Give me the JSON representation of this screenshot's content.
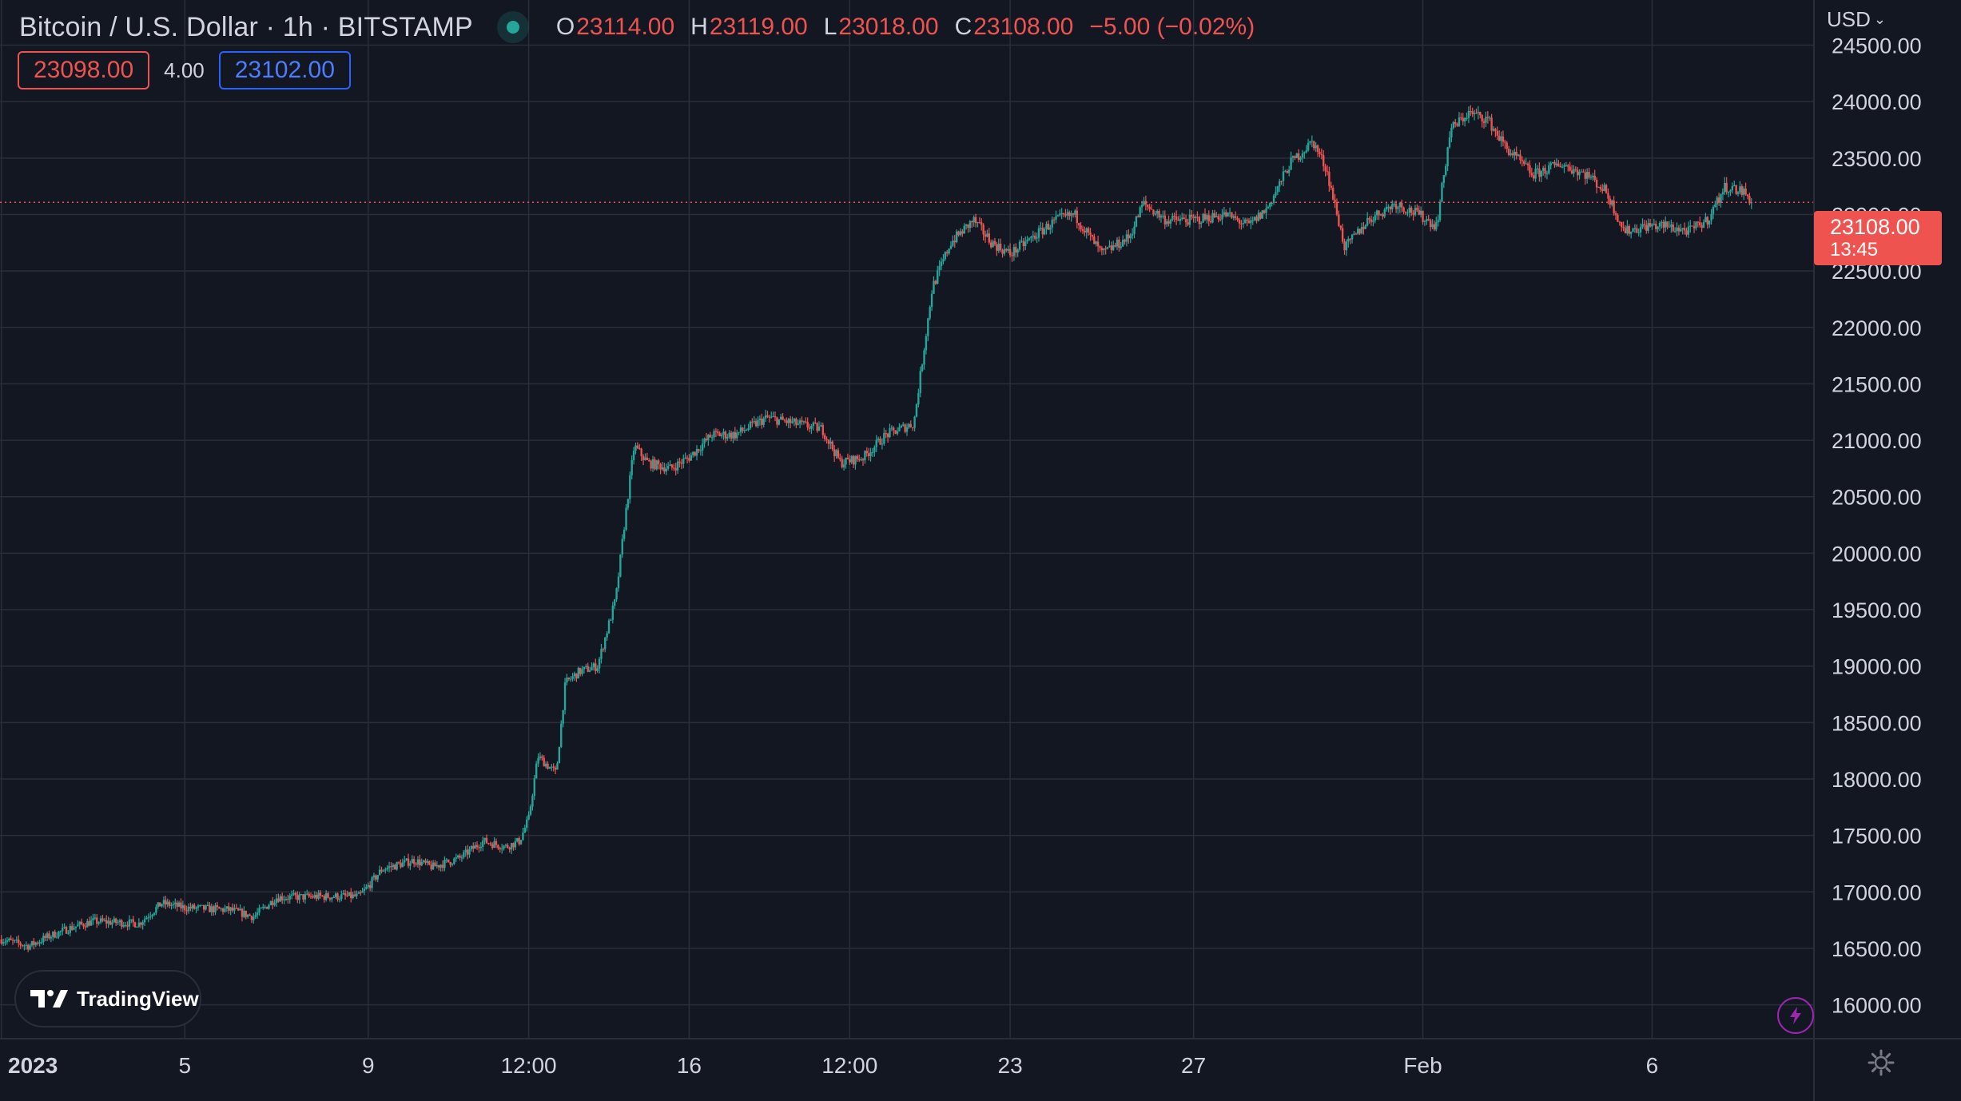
{
  "header": {
    "symbol_title": "Bitcoin / U.S. Dollar · 1h · BITSTAMP",
    "ohlc": {
      "o_label": "O",
      "o_value": "23114.00",
      "h_label": "H",
      "h_value": "23119.00",
      "l_label": "L",
      "l_value": "23018.00",
      "c_label": "C",
      "c_value": "23108.00",
      "change": "−5.00 (−0.02%)"
    },
    "bid": "23098.00",
    "spread": "4.00",
    "ask": "23102.00"
  },
  "price_scale": {
    "currency": "USD",
    "last_price": "23108.00",
    "countdown": "13:45"
  },
  "branding": {
    "logo_text": "TradingView"
  },
  "icons": {
    "live": "live-dot-icon",
    "bolt": "lightning-icon",
    "gear": "gear-icon",
    "chevron": "chevron-down-icon"
  },
  "colors": {
    "background": "#131722",
    "grid": "#2a2e39",
    "up": "#26a69a",
    "down": "#ef5350",
    "text": "#d1d4dc"
  },
  "chart_data": {
    "type": "candlestick",
    "title": "",
    "xlabel": "",
    "ylabel": "",
    "ylim": [
      15700,
      24900
    ],
    "y_ticks": [
      24500,
      24000,
      23500,
      23000,
      22500,
      22000,
      21500,
      21000,
      20500,
      20000,
      19500,
      19000,
      18500,
      18000,
      17500,
      17000,
      16500,
      16000
    ],
    "y_tick_labels": [
      "24500.00",
      "24000.00",
      "23500.00",
      "23000.00",
      "22500.00",
      "22000.00",
      "21500.00",
      "21000.00",
      "20500.00",
      "20000.00",
      "19500.00",
      "19000.00",
      "18500.00",
      "18000.00",
      "17500.00",
      "17000.00",
      "16500.00",
      "16000.00"
    ],
    "x_range": [
      -0.03,
      39.53
    ],
    "x_ticks": [
      {
        "t": 0,
        "label": "2023",
        "bold": true
      },
      {
        "t": 4,
        "label": "5"
      },
      {
        "t": 8,
        "label": "9"
      },
      {
        "t": 11.5,
        "label": "12:00"
      },
      {
        "t": 15,
        "label": "16"
      },
      {
        "t": 18.5,
        "label": "12:00"
      },
      {
        "t": 22,
        "label": "23"
      },
      {
        "t": 26,
        "label": "27"
      },
      {
        "t": 31,
        "label": "Feb"
      },
      {
        "t": 36,
        "label": "6"
      }
    ],
    "last_price": 23108,
    "series": [
      {
        "keypoints": [
          [
            0,
            16580
          ],
          [
            0.6,
            16520
          ],
          [
            1,
            16600
          ],
          [
            1.5,
            16680
          ],
          [
            2,
            16740
          ],
          [
            3,
            16720
          ],
          [
            3.5,
            16900
          ],
          [
            4,
            16860
          ],
          [
            5,
            16840
          ],
          [
            5.5,
            16780
          ],
          [
            6,
            16950
          ],
          [
            7,
            16960
          ],
          [
            7.8,
            16960
          ],
          [
            8,
            17050
          ],
          [
            8.3,
            17200
          ],
          [
            9,
            17280
          ],
          [
            9.4,
            17220
          ],
          [
            10,
            17300
          ],
          [
            10.5,
            17450
          ],
          [
            11,
            17400
          ],
          [
            11.3,
            17450
          ],
          [
            11.5,
            17650
          ],
          [
            11.7,
            18200
          ],
          [
            12.1,
            18050
          ],
          [
            12.3,
            18850
          ],
          [
            12.6,
            18950
          ],
          [
            13,
            19000
          ],
          [
            13.4,
            19600
          ],
          [
            13.6,
            20300
          ],
          [
            13.8,
            20950
          ],
          [
            14.1,
            20800
          ],
          [
            14.6,
            20750
          ],
          [
            15,
            20850
          ],
          [
            15.5,
            21050
          ],
          [
            16,
            21050
          ],
          [
            16.7,
            21200
          ],
          [
            17.3,
            21150
          ],
          [
            17.9,
            21100
          ],
          [
            18.3,
            20800
          ],
          [
            18.8,
            20850
          ],
          [
            19.3,
            21050
          ],
          [
            19.9,
            21150
          ],
          [
            20.3,
            22350
          ],
          [
            20.7,
            22750
          ],
          [
            21.2,
            22950
          ],
          [
            21.6,
            22750
          ],
          [
            22,
            22650
          ],
          [
            22.5,
            22800
          ],
          [
            23,
            22950
          ],
          [
            23.4,
            23000
          ],
          [
            24,
            22650
          ],
          [
            24.6,
            22800
          ],
          [
            24.9,
            23100
          ],
          [
            25.4,
            22950
          ],
          [
            26,
            22950
          ],
          [
            26.7,
            23000
          ],
          [
            27.2,
            22900
          ],
          [
            27.6,
            23050
          ],
          [
            28.1,
            23450
          ],
          [
            28.6,
            23650
          ],
          [
            28.9,
            23400
          ],
          [
            29.3,
            22700
          ],
          [
            29.8,
            22950
          ],
          [
            30.4,
            23100
          ],
          [
            30.9,
            23000
          ],
          [
            31.3,
            22900
          ],
          [
            31.6,
            23750
          ],
          [
            32,
            23900
          ],
          [
            32.4,
            23850
          ],
          [
            32.8,
            23600
          ],
          [
            33.4,
            23350
          ],
          [
            34,
            23450
          ],
          [
            34.6,
            23350
          ],
          [
            35,
            23200
          ],
          [
            35.4,
            22850
          ],
          [
            35.9,
            22900
          ],
          [
            36.3,
            22900
          ],
          [
            36.8,
            22850
          ],
          [
            37.2,
            22950
          ],
          [
            37.6,
            23250
          ],
          [
            38,
            23200
          ],
          [
            38.2,
            23100
          ]
        ]
      }
    ]
  }
}
